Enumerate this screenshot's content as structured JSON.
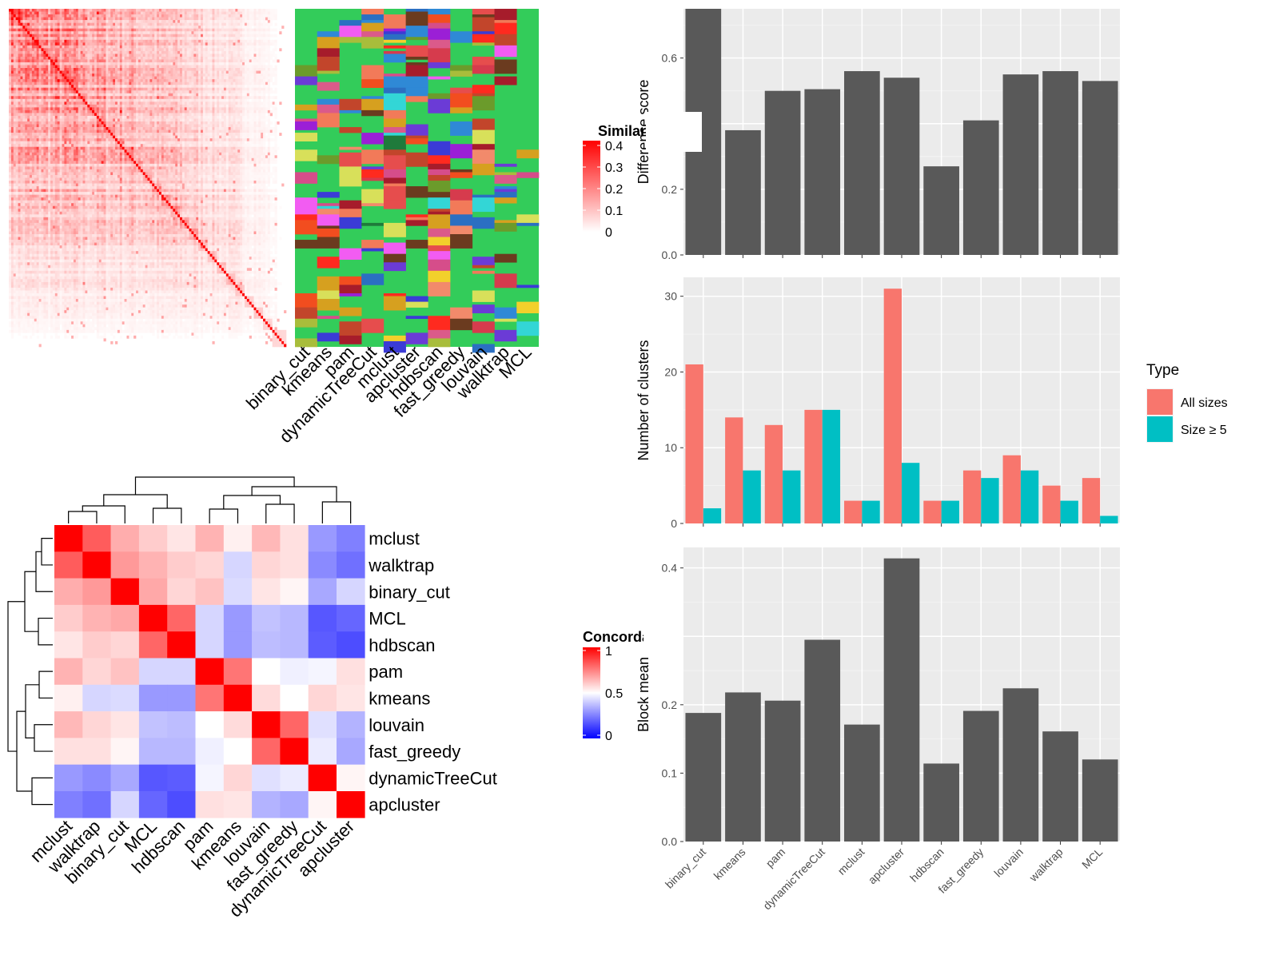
{
  "top_heatmap": {
    "legend_title": "Similarity",
    "legend_ticks": [
      "0.4",
      "0.3",
      "0.2",
      "0.1",
      "0"
    ],
    "color_low": "#ffffff",
    "color_high": "#ff0000",
    "method_labels": [
      "binary_cut",
      "kmeans",
      "pam",
      "dynamicTreeCut",
      "mclust",
      "apcluster",
      "hdbscan",
      "fast_greedy",
      "louvain",
      "walktrap",
      "MCL"
    ],
    "cluster_background_color": "#33cc5a"
  },
  "concordance_heatmap": {
    "legend_title": "Concordance",
    "legend_ticks": [
      "1",
      "0.5",
      "0"
    ],
    "colors": {
      "low": "#0000ff",
      "mid": "#ffffff",
      "high": "#ff0000"
    },
    "labels": [
      "mclust",
      "walktrap",
      "binary_cut",
      "MCL",
      "hdbscan",
      "pam",
      "kmeans",
      "louvain",
      "fast_greedy",
      "dynamicTreeCut",
      "apcluster"
    ]
  },
  "chart_data": [
    {
      "type": "bar",
      "ylabel": "Difference score",
      "ylim": [
        0,
        0.75
      ],
      "y_ticks": [
        "0.0",
        "0.2",
        "0.4",
        "0.6"
      ],
      "categories": [
        "binary_cut",
        "kmeans",
        "pam",
        "dynamicTreeCut",
        "mclust",
        "apcluster",
        "hdbscan",
        "fast_greedy",
        "louvain",
        "walktrap",
        "MCL"
      ],
      "values": [
        0.75,
        0.38,
        0.5,
        0.505,
        0.56,
        0.54,
        0.27,
        0.41,
        0.55,
        0.56,
        0.53
      ],
      "bar_color": "#595959",
      "grid": true
    },
    {
      "type": "bar",
      "ylabel": "Number of clusters",
      "ylim": [
        0,
        32.5
      ],
      "y_ticks": [
        "0",
        "10",
        "20",
        "30"
      ],
      "categories": [
        "binary_cut",
        "kmeans",
        "pam",
        "dynamicTreeCut",
        "mclust",
        "apcluster",
        "hdbscan",
        "fast_greedy",
        "louvain",
        "walktrap",
        "MCL"
      ],
      "legend_title": "Type",
      "legend_position": "right",
      "series": [
        {
          "name": "All sizes",
          "color": "#f8766d",
          "values": [
            21,
            14,
            13,
            15,
            3,
            31,
            3,
            7,
            9,
            5,
            6
          ]
        },
        {
          "name": "Size ≥ 5",
          "color": "#00bfc4",
          "values": [
            2,
            7,
            7,
            15,
            3,
            8,
            3,
            6,
            7,
            3,
            1
          ]
        }
      ],
      "grid": true
    },
    {
      "type": "bar",
      "ylabel": "Block mean",
      "ylim": [
        0,
        0.43
      ],
      "y_ticks": [
        "0.0",
        "0.1",
        "0.2",
        "0.3",
        "0.4"
      ],
      "categories": [
        "binary_cut",
        "kmeans",
        "pam",
        "dynamicTreeCut",
        "mclust",
        "apcluster",
        "hdbscan",
        "fast_greedy",
        "louvain",
        "walktrap",
        "MCL"
      ],
      "values": [
        0.188,
        0.218,
        0.206,
        0.295,
        0.171,
        0.414,
        0.114,
        0.191,
        0.224,
        0.161,
        0.12
      ],
      "bar_color": "#595959",
      "grid": true
    }
  ]
}
